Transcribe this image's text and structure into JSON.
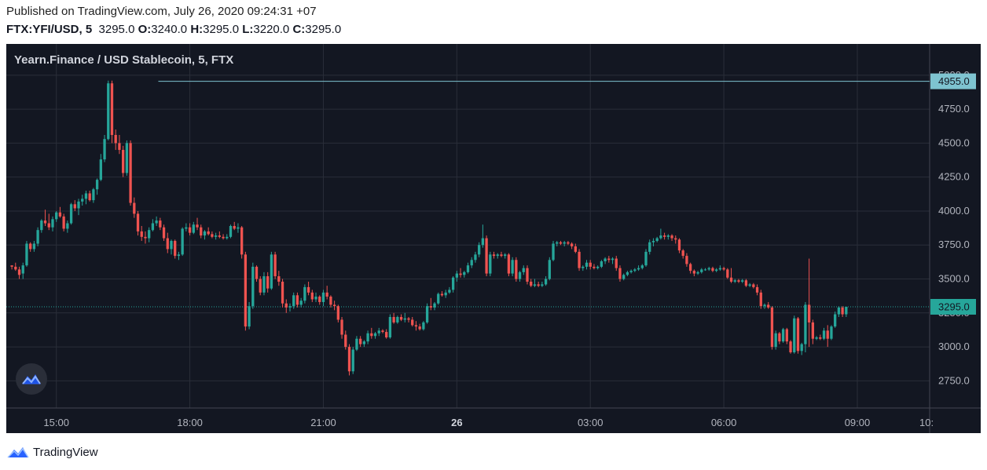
{
  "header": {
    "published": "Published on TradingView.com, July 26, 2020 09:24:31 +07",
    "symbol": "FTX:YFI/USD, 5",
    "last": "3295.0",
    "o_label": "O:",
    "o_value": "3240.0",
    "h_label": "H:",
    "h_value": "3295.0",
    "l_label": "L:",
    "l_value": "3220.0",
    "c_label": "C:",
    "c_value": "3295.0"
  },
  "legend": {
    "title": "Yearn.Finance / USD Stablecoin, 5, FTX"
  },
  "footer": {
    "brand": "TradingView"
  },
  "colors": {
    "background": "#131722",
    "up": "#26a69a",
    "down": "#ef5350",
    "highline": "#7ec3d0",
    "lastline": "#26a69a"
  },
  "chart_data": {
    "type": "candlestick",
    "interval": "5",
    "x_ticks": [
      {
        "label": "15:00",
        "t": 0
      },
      {
        "label": "18:00",
        "t": 36
      },
      {
        "label": "21:00",
        "t": 72
      },
      {
        "label": "26",
        "t": 108,
        "bold": true
      },
      {
        "label": "03:00",
        "t": 144
      },
      {
        "label": "06:00",
        "t": 180
      },
      {
        "label": "09:00",
        "t": 216
      },
      {
        "label": "10:",
        "t": 228
      }
    ],
    "y_ticks": [
      2750,
      3000,
      3250,
      3500,
      3750,
      4000,
      4250,
      4500,
      4750,
      5000
    ],
    "ylim": [
      2550,
      5230
    ],
    "xlim": [
      -13.5,
      235.5
    ],
    "price_tags": [
      {
        "label": "4955.0",
        "value": 4955,
        "kind": "high"
      },
      {
        "label": "3295.0",
        "value": 3295,
        "kind": "last"
      }
    ],
    "ohlc": [
      [
        3600,
        3600,
        3570,
        3590
      ],
      [
        3590,
        3620,
        3560,
        3570
      ],
      [
        3570,
        3590,
        3500,
        3530
      ],
      [
        3540,
        3620,
        3500,
        3600
      ],
      [
        3600,
        3780,
        3590,
        3760
      ],
      [
        3760,
        3770,
        3700,
        3720
      ],
      [
        3720,
        3780,
        3700,
        3760
      ],
      [
        3760,
        3880,
        3740,
        3860
      ],
      [
        3860,
        3940,
        3840,
        3930
      ],
      [
        3930,
        4010,
        3890,
        3910
      ],
      [
        3910,
        3980,
        3860,
        3880
      ],
      [
        3880,
        3960,
        3850,
        3940
      ],
      [
        3940,
        4000,
        3920,
        3990
      ],
      [
        3990,
        4030,
        3950,
        3960
      ],
      [
        3960,
        3980,
        3850,
        3870
      ],
      [
        3870,
        3930,
        3840,
        3910
      ],
      [
        3910,
        4060,
        3900,
        4050
      ],
      [
        4050,
        4080,
        4000,
        4020
      ],
      [
        4020,
        4090,
        3970,
        4070
      ],
      [
        4070,
        4120,
        4040,
        4090
      ],
      [
        4090,
        4150,
        4050,
        4130
      ],
      [
        4130,
        4150,
        4070,
        4080
      ],
      [
        4080,
        4170,
        4060,
        4160
      ],
      [
        4160,
        4240,
        4120,
        4230
      ],
      [
        4230,
        4420,
        4220,
        4380
      ],
      [
        4380,
        4560,
        4360,
        4530
      ],
      [
        4530,
        4960,
        4520,
        4940
      ],
      [
        4940,
        4960,
        4500,
        4560
      ],
      [
        4560,
        4600,
        4450,
        4500
      ],
      [
        4500,
        4560,
        4420,
        4450
      ],
      [
        4450,
        4480,
        4250,
        4280
      ],
      [
        4280,
        4520,
        4260,
        4500
      ],
      [
        4500,
        4520,
        4040,
        4060
      ],
      [
        4060,
        4100,
        3950,
        3980
      ],
      [
        3980,
        4000,
        3820,
        3850
      ],
      [
        3850,
        3890,
        3780,
        3810
      ],
      [
        3810,
        3850,
        3760,
        3800
      ],
      [
        3800,
        3880,
        3770,
        3860
      ],
      [
        3860,
        3940,
        3850,
        3910
      ],
      [
        3910,
        3960,
        3890,
        3930
      ],
      [
        3930,
        3950,
        3860,
        3880
      ],
      [
        3880,
        3900,
        3780,
        3800
      ],
      [
        3800,
        3840,
        3690,
        3720
      ],
      [
        3720,
        3790,
        3680,
        3780
      ],
      [
        3780,
        3790,
        3650,
        3670
      ],
      [
        3670,
        3700,
        3640,
        3680
      ],
      [
        3680,
        3880,
        3670,
        3870
      ],
      [
        3870,
        3910,
        3850,
        3880
      ],
      [
        3880,
        3910,
        3820,
        3840
      ],
      [
        3840,
        3920,
        3830,
        3900
      ],
      [
        3900,
        3950,
        3860,
        3880
      ],
      [
        3880,
        3900,
        3800,
        3820
      ],
      [
        3820,
        3860,
        3790,
        3850
      ],
      [
        3850,
        3880,
        3820,
        3830
      ],
      [
        3830,
        3850,
        3800,
        3810
      ],
      [
        3810,
        3840,
        3790,
        3820
      ],
      [
        3820,
        3850,
        3800,
        3810
      ],
      [
        3810,
        3830,
        3790,
        3800
      ],
      [
        3800,
        3830,
        3790,
        3810
      ],
      [
        3810,
        3900,
        3800,
        3890
      ],
      [
        3890,
        3920,
        3860,
        3870
      ],
      [
        3870,
        3910,
        3840,
        3880
      ],
      [
        3880,
        3890,
        3650,
        3680
      ],
      [
        3680,
        3700,
        3120,
        3150
      ],
      [
        3150,
        3330,
        3130,
        3300
      ],
      [
        3300,
        3620,
        3280,
        3590
      ],
      [
        3590,
        3600,
        3480,
        3500
      ],
      [
        3500,
        3520,
        3380,
        3400
      ],
      [
        3400,
        3550,
        3380,
        3520
      ],
      [
        3520,
        3550,
        3400,
        3430
      ],
      [
        3430,
        3700,
        3420,
        3680
      ],
      [
        3680,
        3700,
        3500,
        3520
      ],
      [
        3520,
        3560,
        3450,
        3480
      ],
      [
        3480,
        3500,
        3290,
        3320
      ],
      [
        3320,
        3350,
        3250,
        3290
      ],
      [
        3290,
        3320,
        3260,
        3300
      ],
      [
        3300,
        3400,
        3280,
        3380
      ],
      [
        3380,
        3400,
        3290,
        3310
      ],
      [
        3310,
        3360,
        3290,
        3340
      ],
      [
        3340,
        3460,
        3320,
        3440
      ],
      [
        3440,
        3480,
        3380,
        3400
      ],
      [
        3400,
        3420,
        3330,
        3350
      ],
      [
        3350,
        3400,
        3330,
        3370
      ],
      [
        3370,
        3380,
        3310,
        3330
      ],
      [
        3330,
        3420,
        3300,
        3400
      ],
      [
        3400,
        3450,
        3350,
        3370
      ],
      [
        3370,
        3380,
        3290,
        3310
      ],
      [
        3310,
        3340,
        3270,
        3300
      ],
      [
        3300,
        3310,
        3180,
        3200
      ],
      [
        3200,
        3220,
        3060,
        3090
      ],
      [
        3090,
        3120,
        2980,
        3000
      ],
      [
        3000,
        3020,
        2790,
        2820
      ],
      [
        2820,
        3000,
        2800,
        2980
      ],
      [
        2980,
        3080,
        2970,
        3060
      ],
      [
        3060,
        3080,
        3000,
        3020
      ],
      [
        3020,
        3050,
        3000,
        3040
      ],
      [
        3040,
        3120,
        3020,
        3100
      ],
      [
        3100,
        3140,
        3060,
        3080
      ],
      [
        3080,
        3110,
        3060,
        3100
      ],
      [
        3100,
        3140,
        3080,
        3120
      ],
      [
        3120,
        3130,
        3100,
        3110
      ],
      [
        3110,
        3130,
        3060,
        3070
      ],
      [
        3070,
        3240,
        3060,
        3220
      ],
      [
        3220,
        3250,
        3170,
        3180
      ],
      [
        3180,
        3230,
        3170,
        3220
      ],
      [
        3220,
        3240,
        3190,
        3200
      ],
      [
        3200,
        3250,
        3180,
        3210
      ],
      [
        3210,
        3220,
        3180,
        3200
      ],
      [
        3200,
        3220,
        3150,
        3160
      ],
      [
        3160,
        3190,
        3120,
        3150
      ],
      [
        3150,
        3170,
        3120,
        3130
      ],
      [
        3130,
        3190,
        3120,
        3180
      ],
      [
        3180,
        3320,
        3170,
        3300
      ],
      [
        3300,
        3360,
        3270,
        3290
      ],
      [
        3290,
        3330,
        3270,
        3320
      ],
      [
        3320,
        3400,
        3310,
        3390
      ],
      [
        3390,
        3410,
        3370,
        3380
      ],
      [
        3380,
        3420,
        3360,
        3400
      ],
      [
        3400,
        3440,
        3390,
        3420
      ],
      [
        3420,
        3520,
        3400,
        3510
      ],
      [
        3510,
        3560,
        3480,
        3540
      ],
      [
        3540,
        3580,
        3510,
        3530
      ],
      [
        3530,
        3560,
        3510,
        3550
      ],
      [
        3550,
        3620,
        3540,
        3600
      ],
      [
        3600,
        3660,
        3580,
        3640
      ],
      [
        3640,
        3700,
        3620,
        3680
      ],
      [
        3680,
        3770,
        3660,
        3750
      ],
      [
        3750,
        3900,
        3730,
        3800
      ],
      [
        3800,
        3820,
        3520,
        3540
      ],
      [
        3540,
        3700,
        3520,
        3680
      ],
      [
        3680,
        3700,
        3650,
        3670
      ],
      [
        3670,
        3690,
        3650,
        3680
      ],
      [
        3680,
        3700,
        3660,
        3670
      ],
      [
        3670,
        3690,
        3650,
        3680
      ],
      [
        3680,
        3690,
        3520,
        3540
      ],
      [
        3540,
        3660,
        3520,
        3640
      ],
      [
        3640,
        3660,
        3480,
        3500
      ],
      [
        3500,
        3560,
        3480,
        3550
      ],
      [
        3550,
        3600,
        3530,
        3580
      ],
      [
        3580,
        3600,
        3460,
        3480
      ],
      [
        3480,
        3500,
        3440,
        3450
      ],
      [
        3450,
        3500,
        3440,
        3460
      ],
      [
        3460,
        3480,
        3440,
        3450
      ],
      [
        3450,
        3480,
        3440,
        3460
      ],
      [
        3460,
        3520,
        3450,
        3500
      ],
      [
        3500,
        3660,
        3490,
        3640
      ],
      [
        3640,
        3780,
        3630,
        3760
      ],
      [
        3760,
        3780,
        3740,
        3770
      ],
      [
        3770,
        3780,
        3750,
        3760
      ],
      [
        3760,
        3780,
        3740,
        3770
      ],
      [
        3770,
        3780,
        3750,
        3760
      ],
      [
        3760,
        3770,
        3720,
        3740
      ],
      [
        3740,
        3760,
        3690,
        3700
      ],
      [
        3700,
        3720,
        3560,
        3580
      ],
      [
        3580,
        3600,
        3560,
        3590
      ],
      [
        3590,
        3640,
        3570,
        3620
      ],
      [
        3620,
        3640,
        3570,
        3590
      ],
      [
        3590,
        3610,
        3570,
        3580
      ],
      [
        3580,
        3600,
        3570,
        3590
      ],
      [
        3590,
        3640,
        3580,
        3630
      ],
      [
        3630,
        3660,
        3610,
        3650
      ],
      [
        3650,
        3670,
        3620,
        3640
      ],
      [
        3640,
        3660,
        3610,
        3650
      ],
      [
        3650,
        3670,
        3560,
        3580
      ],
      [
        3580,
        3600,
        3480,
        3500
      ],
      [
        3500,
        3540,
        3490,
        3530
      ],
      [
        3530,
        3560,
        3520,
        3550
      ],
      [
        3550,
        3570,
        3540,
        3560
      ],
      [
        3560,
        3580,
        3550,
        3570
      ],
      [
        3570,
        3600,
        3560,
        3580
      ],
      [
        3580,
        3610,
        3570,
        3600
      ],
      [
        3600,
        3720,
        3590,
        3700
      ],
      [
        3700,
        3790,
        3680,
        3770
      ],
      [
        3770,
        3800,
        3740,
        3780
      ],
      [
        3780,
        3810,
        3770,
        3800
      ],
      [
        3800,
        3870,
        3790,
        3820
      ],
      [
        3820,
        3840,
        3790,
        3810
      ],
      [
        3810,
        3830,
        3790,
        3820
      ],
      [
        3820,
        3830,
        3780,
        3800
      ],
      [
        3800,
        3820,
        3760,
        3790
      ],
      [
        3790,
        3800,
        3690,
        3710
      ],
      [
        3710,
        3720,
        3650,
        3670
      ],
      [
        3670,
        3690,
        3590,
        3610
      ],
      [
        3610,
        3620,
        3540,
        3560
      ],
      [
        3560,
        3570,
        3520,
        3540
      ],
      [
        3540,
        3560,
        3530,
        3550
      ],
      [
        3550,
        3580,
        3540,
        3570
      ],
      [
        3570,
        3580,
        3560,
        3570
      ],
      [
        3570,
        3590,
        3560,
        3580
      ],
      [
        3580,
        3590,
        3550,
        3560
      ],
      [
        3560,
        3580,
        3550,
        3570
      ],
      [
        3570,
        3600,
        3560,
        3580
      ],
      [
        3580,
        3590,
        3560,
        3570
      ],
      [
        3570,
        3580,
        3500,
        3510
      ],
      [
        3510,
        3580,
        3470,
        3480
      ],
      [
        3480,
        3500,
        3470,
        3490
      ],
      [
        3490,
        3500,
        3470,
        3480
      ],
      [
        3480,
        3500,
        3470,
        3490
      ],
      [
        3490,
        3500,
        3440,
        3450
      ],
      [
        3450,
        3470,
        3440,
        3460
      ],
      [
        3460,
        3470,
        3430,
        3440
      ],
      [
        3440,
        3460,
        3380,
        3400
      ],
      [
        3400,
        3420,
        3280,
        3300
      ],
      [
        3300,
        3320,
        3280,
        3310
      ],
      [
        3310,
        3330,
        3280,
        3290
      ],
      [
        3290,
        3300,
        2980,
        3000
      ],
      [
        3000,
        3120,
        2980,
        3100
      ],
      [
        3100,
        3110,
        3020,
        3040
      ],
      [
        3040,
        3140,
        3030,
        3130
      ],
      [
        3130,
        3140,
        3020,
        3040
      ],
      [
        3040,
        3050,
        2950,
        2960
      ],
      [
        2960,
        3230,
        2950,
        3210
      ],
      [
        3210,
        3220,
        2950,
        2970
      ],
      [
        2970,
        3030,
        2940,
        3020
      ],
      [
        3020,
        3330,
        2960,
        3310
      ],
      [
        3310,
        3650,
        3000,
        3180
      ],
      [
        3180,
        3200,
        3020,
        3060
      ],
      [
        3060,
        3080,
        3050,
        3070
      ],
      [
        3070,
        3090,
        3050,
        3060
      ],
      [
        3060,
        3140,
        3050,
        3120
      ],
      [
        3120,
        3160,
        3000,
        3060
      ],
      [
        3060,
        3160,
        3050,
        3150
      ],
      [
        3150,
        3260,
        3140,
        3240
      ],
      [
        3240,
        3300,
        3220,
        3290
      ],
      [
        3290,
        3300,
        3220,
        3240
      ],
      [
        3240,
        3295,
        3220,
        3295
      ]
    ]
  }
}
